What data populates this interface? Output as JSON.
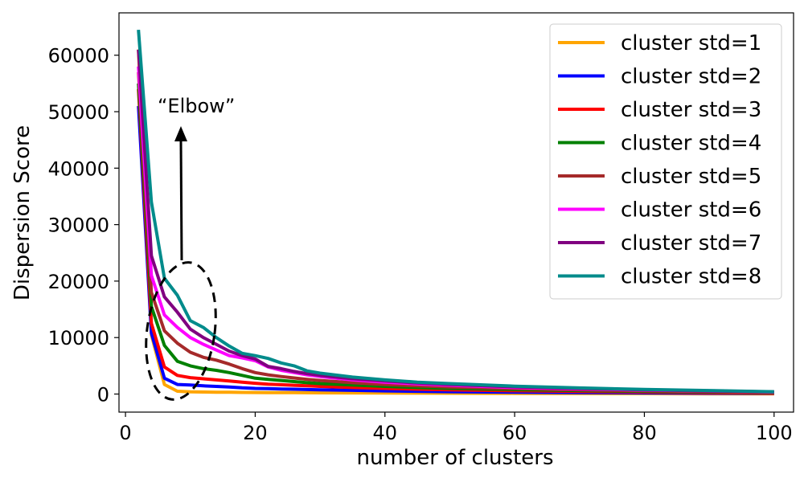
{
  "chart_data": {
    "type": "line",
    "title": "",
    "xlabel": "number of clusters",
    "ylabel": "Dispersion Score",
    "xlim": [
      -1,
      103
    ],
    "ylim": [
      -3200,
      67500
    ],
    "xticks": [
      0,
      20,
      40,
      60,
      80,
      100
    ],
    "yticks": [
      0,
      10000,
      20000,
      30000,
      40000,
      50000,
      60000
    ],
    "grid": false,
    "legend_position": "top-right",
    "annotation": {
      "text": "“Elbow”",
      "shape": "dashed ellipse around the elbow with upward arrow",
      "points_to_x": 7
    },
    "x": [
      2,
      4,
      6,
      8,
      10,
      12,
      14,
      16,
      18,
      20,
      22,
      24,
      26,
      28,
      30,
      35,
      40,
      45,
      50,
      60,
      70,
      80,
      90,
      100
    ],
    "series": [
      {
        "name": "cluster std=1",
        "color": "#ffa500",
        "values": [
          61000,
          10500,
          1700,
          500,
          400,
          350,
          330,
          310,
          290,
          270,
          260,
          250,
          240,
          230,
          220,
          200,
          180,
          160,
          140,
          110,
          90,
          70,
          50,
          30
        ]
      },
      {
        "name": "cluster std=2",
        "color": "#0000ff",
        "values": [
          51000,
          10800,
          2800,
          1700,
          1600,
          1450,
          1350,
          1250,
          1100,
          1000,
          950,
          900,
          850,
          800,
          750,
          650,
          550,
          480,
          420,
          320,
          250,
          200,
          150,
          100
        ]
      },
      {
        "name": "cluster std=3",
        "color": "#ff0000",
        "values": [
          54000,
          12500,
          4800,
          3300,
          2900,
          2700,
          2500,
          2300,
          2100,
          1900,
          1750,
          1650,
          1550,
          1450,
          1350,
          1150,
          1000,
          850,
          750,
          580,
          450,
          350,
          250,
          150
        ]
      },
      {
        "name": "cluster std=4",
        "color": "#008000",
        "values": [
          55000,
          15500,
          8600,
          5800,
          5000,
          4500,
          4200,
          3800,
          3300,
          2800,
          2600,
          2400,
          2200,
          2000,
          1850,
          1600,
          1350,
          1150,
          1000,
          780,
          620,
          480,
          350,
          250
        ]
      },
      {
        "name": "cluster std=5",
        "color": "#a52a2a",
        "values": [
          57000,
          18000,
          11200,
          9000,
          7400,
          6500,
          6000,
          5300,
          4500,
          3800,
          3400,
          3100,
          2850,
          2600,
          2400,
          2000,
          1700,
          1450,
          1250,
          950,
          750,
          580,
          430,
          300
        ]
      },
      {
        "name": "cluster std=6",
        "color": "#ff00ff",
        "values": [
          58000,
          21000,
          14000,
          11800,
          10000,
          8800,
          7800,
          6800,
          6400,
          5900,
          4800,
          4200,
          3800,
          3400,
          3100,
          2500,
          2100,
          1800,
          1550,
          1150,
          900,
          700,
          520,
          350
        ]
      },
      {
        "name": "cluster std=7",
        "color": "#800080",
        "values": [
          61000,
          24500,
          17200,
          14500,
          11500,
          10000,
          8800,
          7600,
          6800,
          6200,
          4900,
          4500,
          4000,
          3600,
          3300,
          2700,
          2300,
          1950,
          1700,
          1280,
          980,
          750,
          560,
          380
        ]
      },
      {
        "name": "cluster std=8",
        "color": "#008b8b",
        "values": [
          64500,
          34000,
          20500,
          17500,
          13000,
          11800,
          10000,
          8500,
          7200,
          6800,
          6300,
          5500,
          5000,
          4100,
          3700,
          3000,
          2500,
          2100,
          1850,
          1400,
          1080,
          830,
          620,
          420
        ]
      }
    ]
  }
}
